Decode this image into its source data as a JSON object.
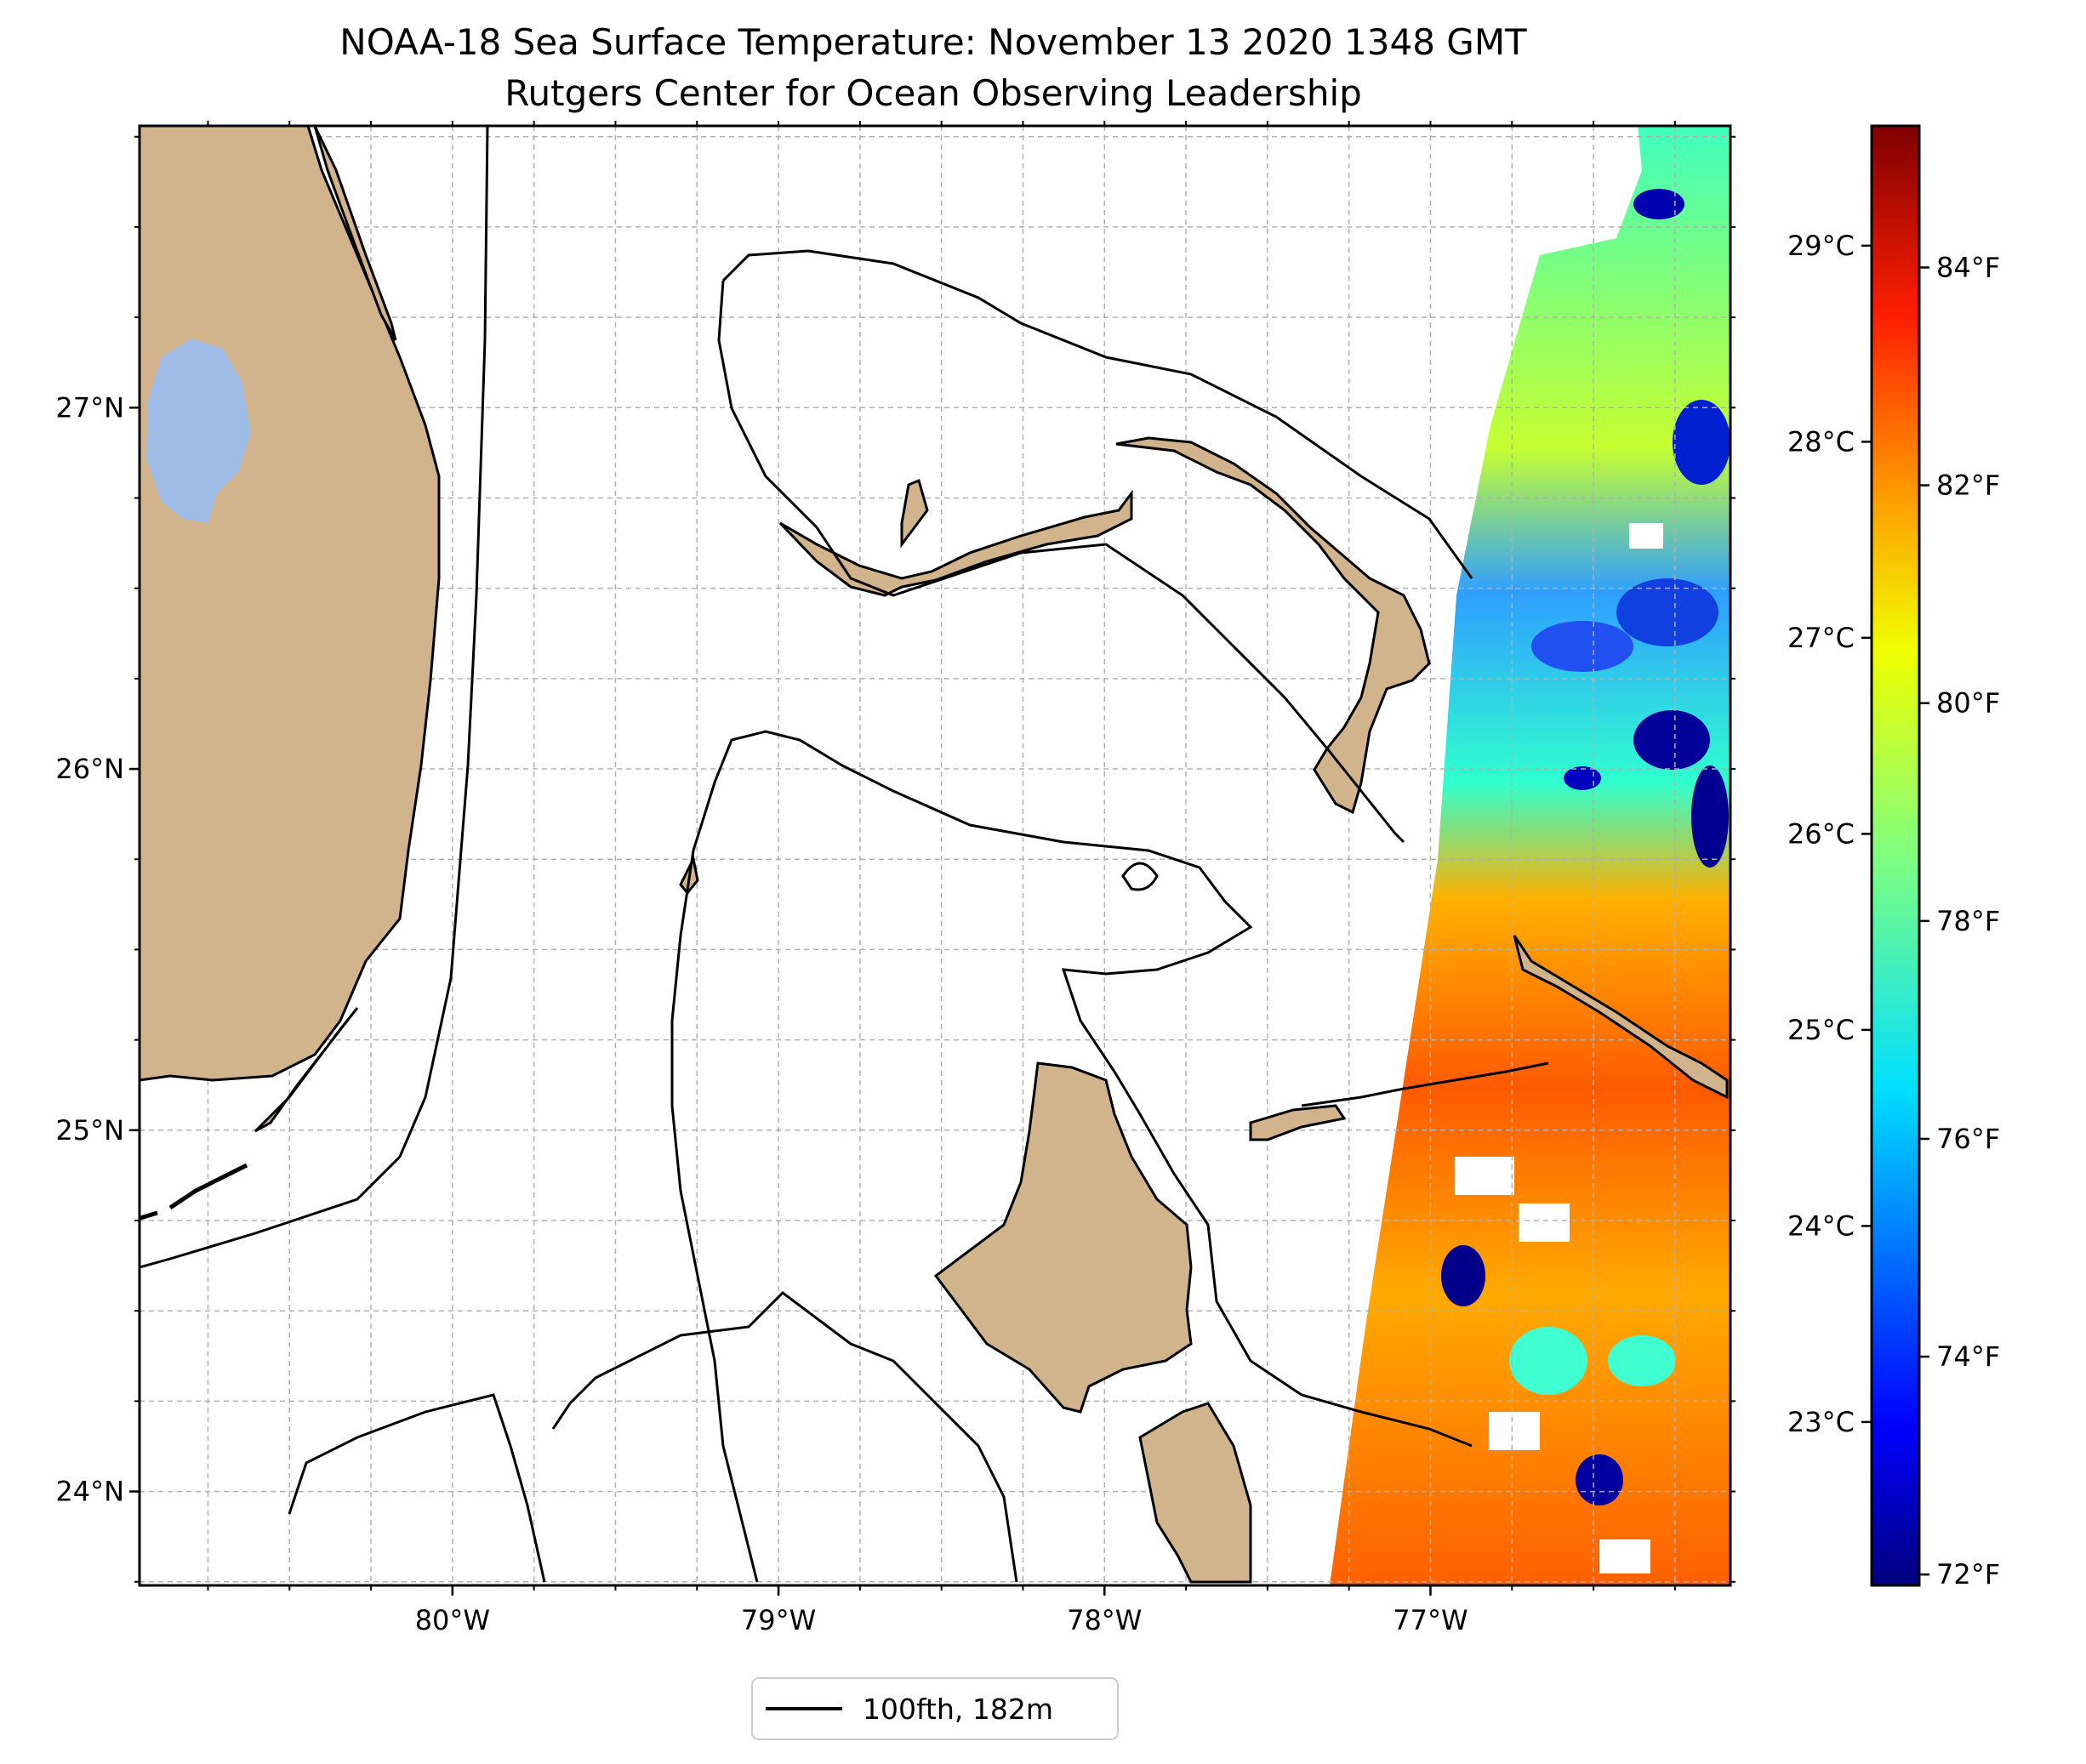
{
  "title": {
    "line1": "NOAA-18 Sea Surface Temperature: November 13 2020 1348 GMT",
    "line2": "Rutgers Center for Ocean Observing Leadership"
  },
  "map": {
    "lon_range": [
      -80.96,
      -76.08
    ],
    "lat_range": [
      23.74,
      27.78
    ],
    "lon_ticks": [
      {
        "value": -80,
        "label": "80°W"
      },
      {
        "value": -79,
        "label": "79°W"
      },
      {
        "value": -78,
        "label": "78°W"
      },
      {
        "value": -77,
        "label": "77°W"
      }
    ],
    "lat_ticks": [
      {
        "value": 24,
        "label": "24°N"
      },
      {
        "value": 25,
        "label": "25°N"
      },
      {
        "value": 26,
        "label": "26°N"
      },
      {
        "value": 27,
        "label": "27°N"
      }
    ],
    "grid": true,
    "land_color": "#d2b48c",
    "lake_color": "#9dbbe5",
    "contour_color": "#000000"
  },
  "colorbar": {
    "colormap": "jet",
    "celsius_ticks": [
      {
        "value": 23,
        "label": "23°C"
      },
      {
        "value": 24,
        "label": "24°C"
      },
      {
        "value": 25,
        "label": "25°C"
      },
      {
        "value": 26,
        "label": "26°C"
      },
      {
        "value": 27,
        "label": "27°C"
      },
      {
        "value": 28,
        "label": "28°C"
      },
      {
        "value": 29,
        "label": "29°C"
      }
    ],
    "fahrenheit_ticks": [
      {
        "value": 72,
        "label": "72°F"
      },
      {
        "value": 74,
        "label": "74°F"
      },
      {
        "value": 76,
        "label": "76°F"
      },
      {
        "value": 78,
        "label": "78°F"
      },
      {
        "value": 80,
        "label": "80°F"
      },
      {
        "value": 82,
        "label": "82°F"
      },
      {
        "value": 84,
        "label": "84°F"
      }
    ],
    "stops": [
      "#00007f",
      "#0000ff",
      "#007fff",
      "#00e5ff",
      "#7fff7f",
      "#e5ff00",
      "#ff9900",
      "#ff1e00",
      "#7f0000"
    ]
  },
  "legend": {
    "label": "100fth, 182m",
    "line_color": "#000000"
  }
}
